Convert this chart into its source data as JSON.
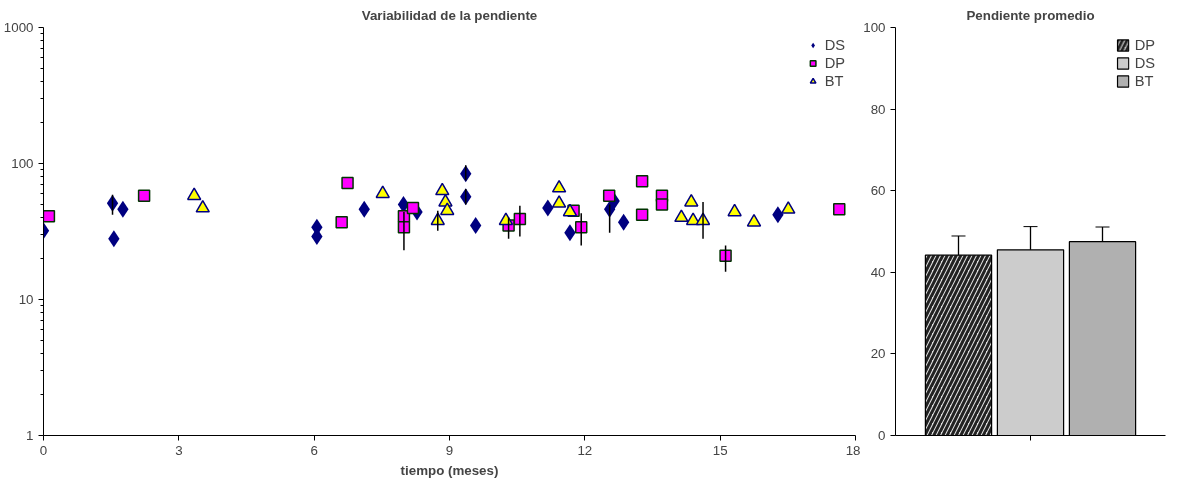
{
  "chart_data": [
    {
      "type": "scatter",
      "title": "Variabilidad de la pendiente",
      "xlabel": "tiempo (meses)",
      "log": "y",
      "xlim": [
        0,
        18
      ],
      "xticks": [
        0,
        3,
        6,
        9,
        12,
        15,
        18
      ],
      "ylim": [
        1,
        1000
      ],
      "yticks": [
        1,
        10,
        100,
        1000
      ],
      "legend": "top right",
      "grid": false,
      "series": [
        {
          "name": "DS",
          "color": "#000080",
          "marker": "diamond",
          "x": [
            0,
            1.53,
            1.76,
            1.56,
            6.06,
            6.06,
            7.11,
            7.98,
            8.28,
            9.36,
            9.36,
            9.58,
            11.18,
            11.67,
            12.65,
            12.55,
            12.86,
            16.28
          ],
          "values": [
            32,
            51,
            46,
            28,
            34,
            29,
            46,
            50,
            44,
            84,
            57,
            35,
            47,
            31,
            53,
            46,
            37,
            42
          ],
          "errors": [
            null,
            [
              42,
              59
            ],
            null,
            null,
            null,
            null,
            null,
            null,
            null,
            [
              75,
              97
            ],
            [
              50,
              65
            ],
            null,
            null,
            null,
            null,
            [
              31,
              50
            ],
            null,
            null
          ]
        },
        {
          "name": "DP",
          "color": "#ff00ff",
          "marker": "square",
          "x": [
            0.12,
            2.23,
            6.61,
            6.74,
            7.99,
            7.99,
            8.19,
            10.31,
            10.56,
            11.75,
            11.92,
            12.54,
            13.27,
            13.27,
            13.71,
            13.71,
            15.12,
            17.64
          ],
          "values": [
            41,
            58,
            37,
            72,
            41,
            34,
            47,
            35,
            39,
            45,
            34,
            58,
            74,
            42,
            58,
            50,
            21,
            46
          ],
          "errors": [
            null,
            null,
            null,
            null,
            null,
            [
              23,
              44
            ],
            null,
            [
              28,
              40
            ],
            [
              29,
              49
            ],
            null,
            [
              25,
              43
            ],
            null,
            null,
            null,
            null,
            null,
            [
              16,
              25
            ],
            null
          ]
        },
        {
          "name": "BT",
          "color": "#ffff00",
          "marker": "triangle",
          "x": [
            3.34,
            3.53,
            7.52,
            8.7,
            8.74,
            8.84,
            8.91,
            8.95,
            10.25,
            11.43,
            11.43,
            11.67,
            14.14,
            14.36,
            14.4,
            14.62,
            15.32,
            15.75,
            16.51
          ],
          "values": [
            58,
            47,
            60,
            null,
            38,
            63,
            52,
            45,
            38,
            66,
            51,
            44,
            40,
            52,
            38,
            38,
            44,
            37,
            46
          ],
          "errors": [
            null,
            null,
            null,
            null,
            [
              32,
              45
            ],
            null,
            null,
            null,
            null,
            null,
            null,
            null,
            null,
            null,
            null,
            [
              28,
              52
            ],
            null,
            null,
            null
          ]
        }
      ]
    },
    {
      "type": "bar",
      "title": "Pendiente promedio",
      "categories": [
        null
      ],
      "ylim": [
        0,
        100
      ],
      "yticks": [
        0,
        20,
        40,
        60,
        80,
        100
      ],
      "legend": "top right",
      "grid": false,
      "tick_labels": "y",
      "series": [
        {
          "name": "DP",
          "color": "#e0e0e0",
          "values": [
            44.2
          ],
          "errors": [
            4.7
          ]
        },
        {
          "name": "DS",
          "color": "#cccccc",
          "values": [
            45.5
          ],
          "errors": [
            5.7
          ]
        },
        {
          "name": "BT",
          "color": "#b0b0b0",
          "values": [
            47.5
          ],
          "errors": [
            3.6
          ]
        }
      ]
    }
  ]
}
